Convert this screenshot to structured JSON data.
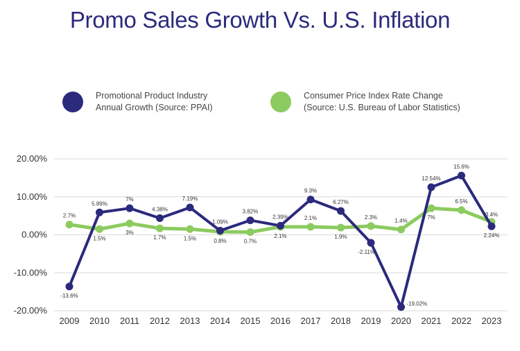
{
  "title": "Promo Sales Growth Vs. U.S. Inflation",
  "legend": [
    {
      "line1": "Promotional Product Industry",
      "line2": "Annual Growth (Source: PPAI)",
      "color": "#2b2a7c"
    },
    {
      "line1": "Consumer Price Index Rate Change",
      "line2": "(Source: U.S. Bureau of Labor Statistics)",
      "color": "#8ccb5f"
    }
  ],
  "chart_data": {
    "type": "line",
    "title": "Promo Sales Growth Vs. U.S. Inflation",
    "categories": [
      "2009",
      "2010",
      "2011",
      "2012",
      "2013",
      "2014",
      "2015",
      "2016",
      "2017",
      "2018",
      "2019",
      "2020",
      "2021",
      "2022",
      "2023"
    ],
    "ylim": [
      -20,
      20
    ],
    "yticks": [
      20,
      10,
      0,
      -10,
      -20
    ],
    "ytick_labels": [
      "20.00%",
      "10.00%",
      "0.00%",
      "-10.00%",
      "-20.00%"
    ],
    "grid": true,
    "legend_position": "top",
    "series": [
      {
        "name": "Promotional Product Industry Annual Growth (Source: PPAI)",
        "color": "#2b2a7c",
        "values": [
          -13.6,
          5.89,
          7,
          4.38,
          7.19,
          1.09,
          3.82,
          2.39,
          9.3,
          6.27,
          -2.11,
          -19.02,
          12.54,
          15.6,
          2.24
        ],
        "labels": [
          "-13.6%",
          "5.89%",
          "7%",
          "4.38%",
          "7.19%",
          "1.09%",
          "3.82%",
          "2.39%",
          "9.3%",
          "6.27%",
          "-2.11%",
          "-19.02%",
          "12.54%",
          "15.6%",
          "2.24%"
        ]
      },
      {
        "name": "Consumer Price Index Rate Change (Source: U.S. Bureau of Labor Statistics)",
        "color": "#8ccb5f",
        "values": [
          2.7,
          1.5,
          3,
          1.7,
          1.5,
          0.8,
          0.7,
          2.1,
          2.1,
          1.9,
          2.3,
          1.4,
          7,
          6.5,
          3.4
        ],
        "labels": [
          "2.7%",
          "1.5%",
          "3%",
          "1.7%",
          "1.5%",
          "0.8%",
          "0.7%",
          "2.1%",
          "2.1%",
          "1.9%",
          "2.3%",
          "1.4%",
          "7%",
          "6.5%",
          "3.4%"
        ]
      }
    ]
  }
}
